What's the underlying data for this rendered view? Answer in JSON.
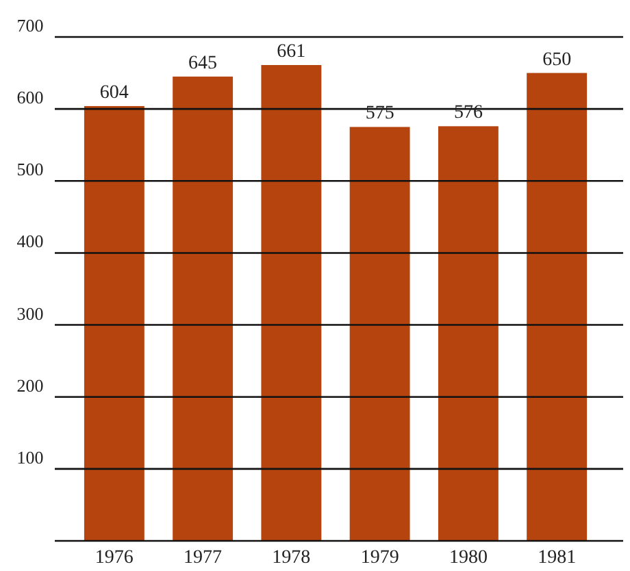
{
  "chart_data": {
    "type": "bar",
    "categories": [
      "1976",
      "1977",
      "1978",
      "1979",
      "1980",
      "1981"
    ],
    "values": [
      604,
      645,
      661,
      575,
      576,
      650
    ],
    "color": "#b5440f",
    "ylim": [
      0,
      700
    ],
    "yticks": [
      100,
      200,
      300,
      400,
      500,
      600,
      700
    ],
    "grid": "y",
    "data_labels": true
  }
}
